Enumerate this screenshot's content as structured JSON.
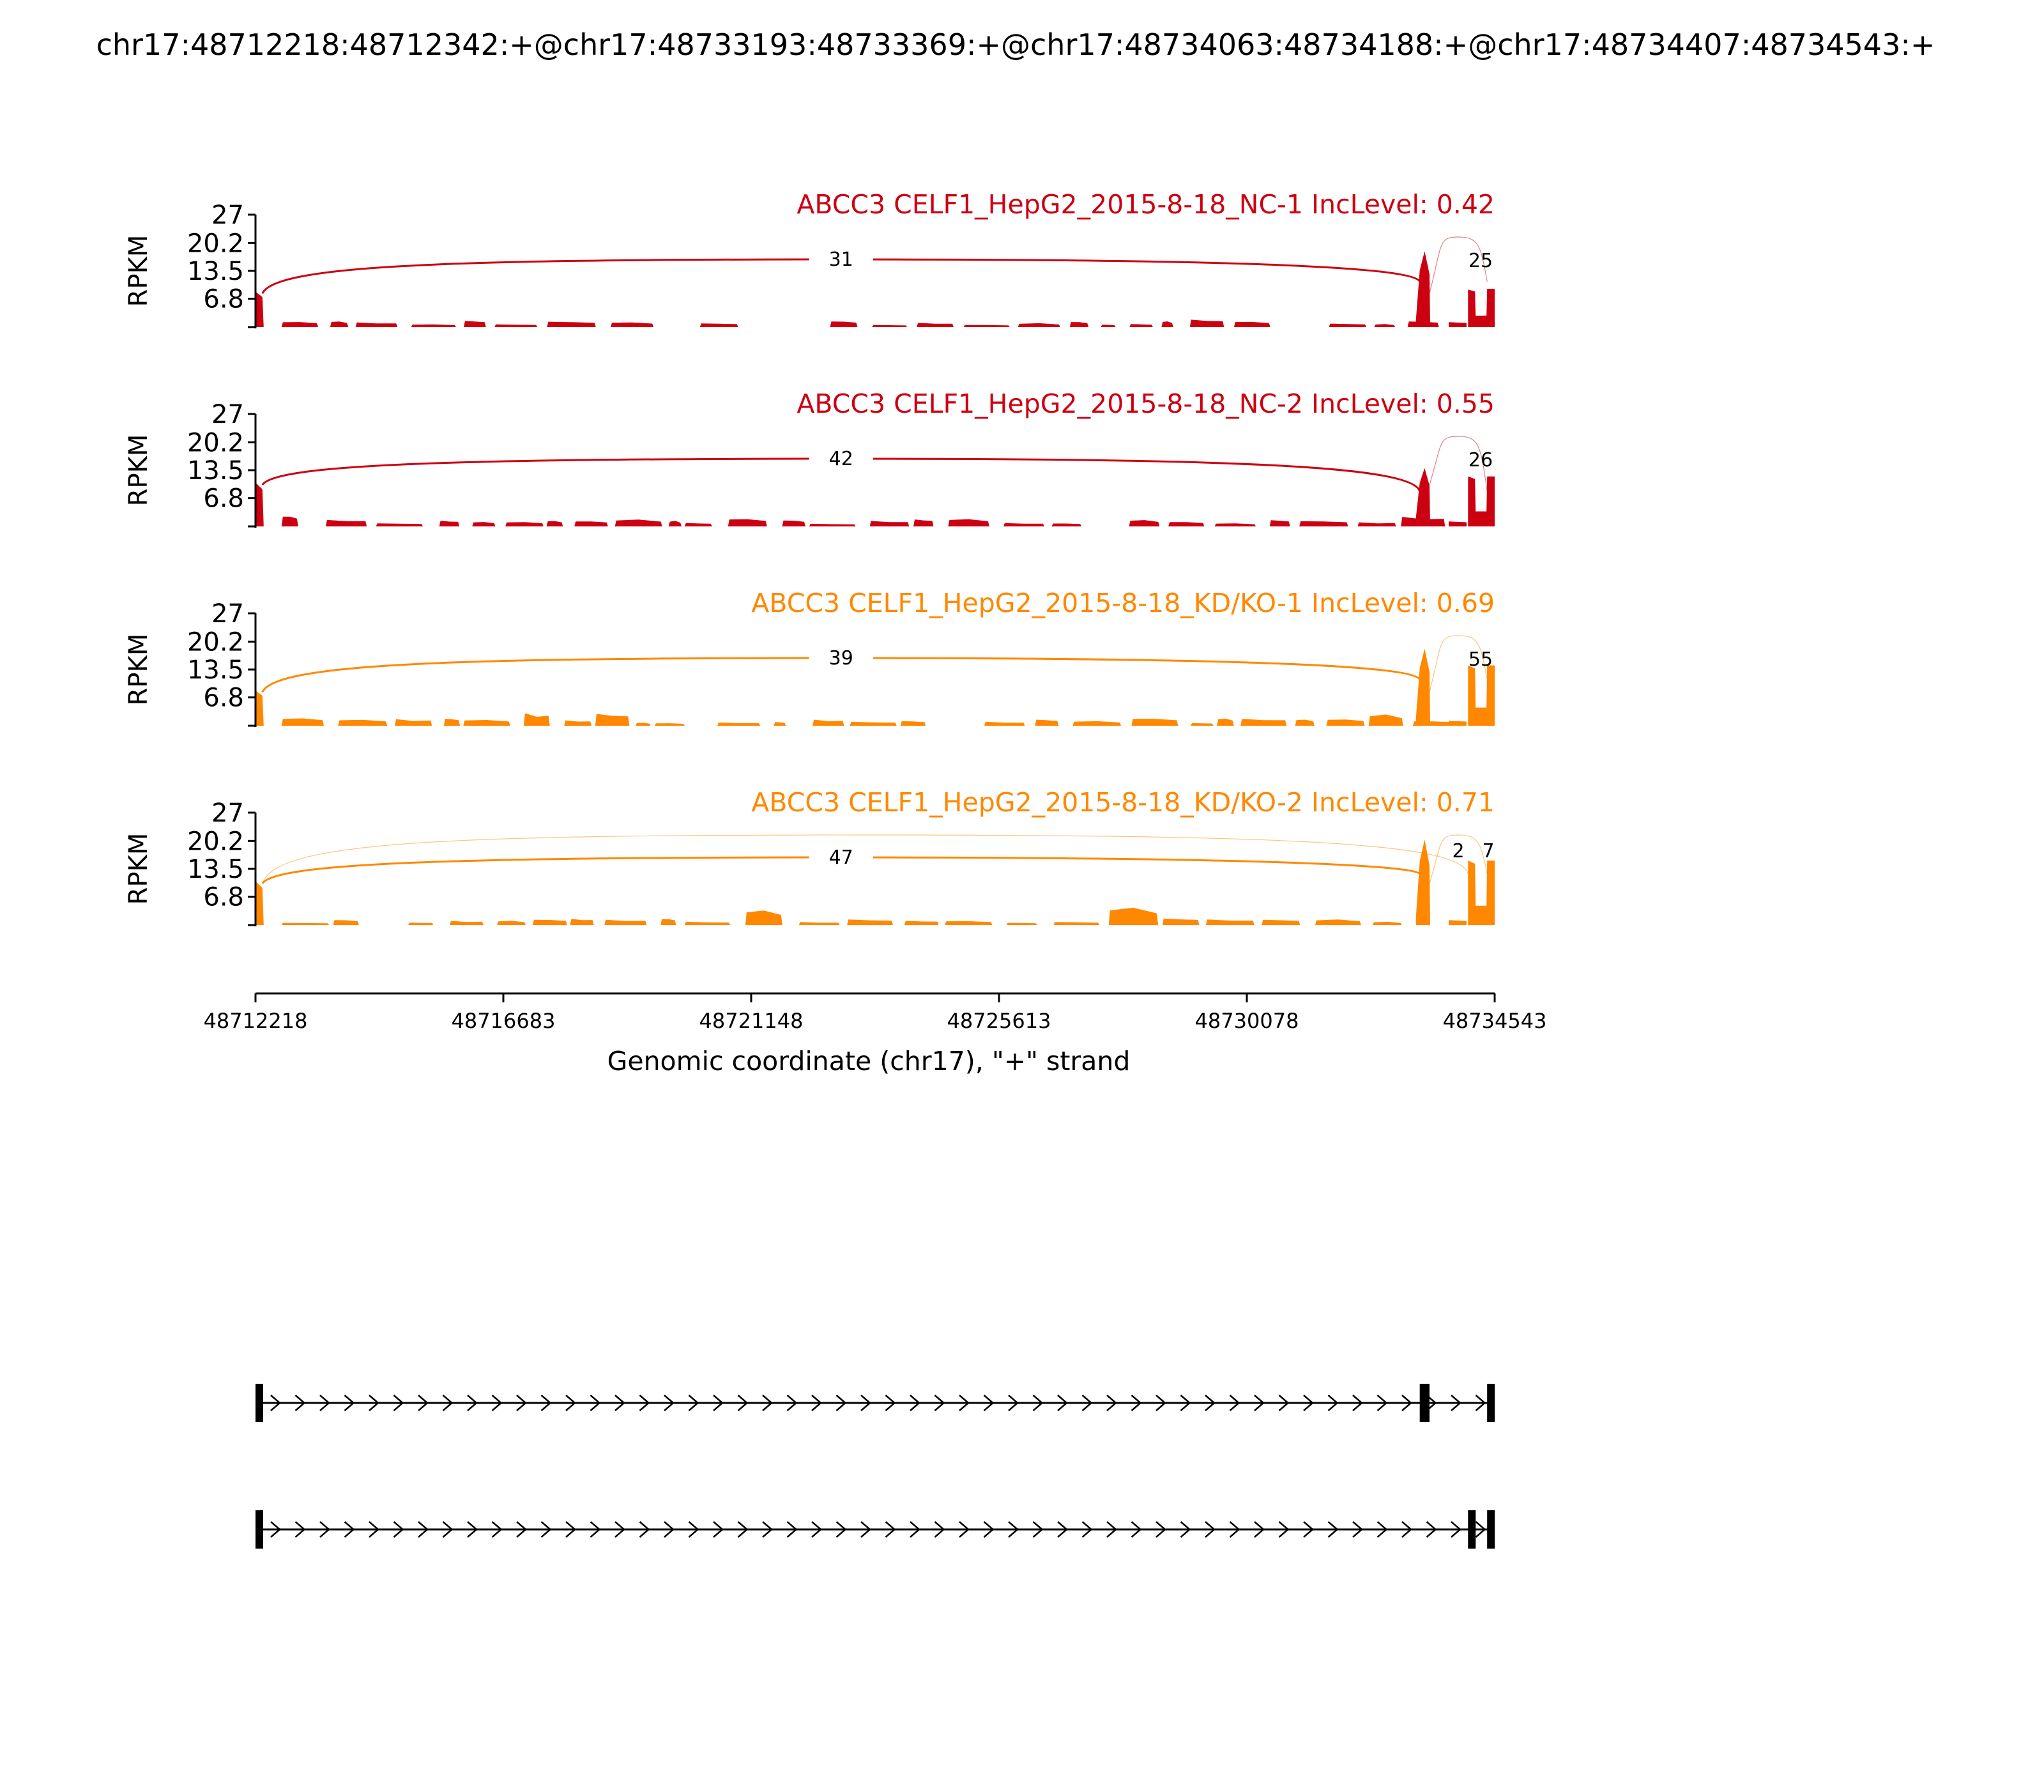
{
  "title": "chr17:48712218:48712342:+@chr17:48733193:48733369:+@chr17:48734063:48734188:+@chr17:48734407:48734543:+",
  "colors": {
    "nc": "#cc0011",
    "kd": "#ff8800",
    "axis": "#000000",
    "background": "#ffffff"
  },
  "chart_data": {
    "type": "area",
    "xlabel": "Genomic coordinate (chr17), \"+\" strand",
    "xlim": [
      48712218,
      48734543
    ],
    "xticks": [
      48712218,
      48716683,
      48721148,
      48725613,
      48730078,
      48734543
    ],
    "xtick_labels": [
      "48712218",
      "48716683",
      "48721148",
      "48725613",
      "48730078",
      "48734543"
    ],
    "ylabel": "RPKM",
    "ylim": [
      0,
      27
    ],
    "yticks": [
      6.8,
      13.5,
      20.2,
      27
    ],
    "ytick_labels": [
      "6.8",
      "13.5",
      "20.2",
      "27"
    ],
    "exons": [
      {
        "start": 48712218,
        "end": 48712342
      },
      {
        "start": 48733193,
        "end": 48733369
      },
      {
        "start": 48734063,
        "end": 48734188
      },
      {
        "start": 48734407,
        "end": 48734543
      }
    ],
    "panels": [
      {
        "label": "ABCC3 CELF1_HepG2_2015-8-18_NC-1 IncLevel: 0.42",
        "group": "nc",
        "peaks": {
          "exon1": 8.5,
          "exon2": 18.2,
          "exon3": 9.0,
          "exon4": 9.2,
          "intron": 1.2
        },
        "junctions": [
          {
            "from": 48712342,
            "to": 48733193,
            "count": "31",
            "show": true
          },
          {
            "from": 48733369,
            "to": 48734407,
            "count": "25",
            "show": false
          }
        ]
      },
      {
        "label": "ABCC3 CELF1_HepG2_2015-8-18_NC-2 IncLevel: 0.55",
        "group": "nc",
        "peaks": {
          "exon1": 10.5,
          "exon2": 14.0,
          "exon3": 12.0,
          "exon4": 12.0,
          "intron": 1.5
        },
        "junctions": [
          {
            "from": 48712342,
            "to": 48733193,
            "count": "42",
            "show": true
          },
          {
            "from": 48733369,
            "to": 48734407,
            "count": "26",
            "show": false
          }
        ]
      },
      {
        "label": "ABCC3 CELF1_HepG2_2015-8-18_KD/KO-1 IncLevel: 0.69",
        "group": "kd",
        "peaks": {
          "exon1": 8.5,
          "exon2": 18.5,
          "exon3": 14.5,
          "exon4": 14.5,
          "intron": 1.3
        },
        "junctions": [
          {
            "from": 48712342,
            "to": 48733193,
            "count": "39",
            "show": true
          },
          {
            "from": 48733369,
            "to": 48734407,
            "count": "55",
            "show": false
          }
        ]
      },
      {
        "label": "ABCC3 CELF1_HepG2_2015-8-18_KD/KO-2 IncLevel: 0.71",
        "group": "kd",
        "peaks": {
          "exon1": 10.5,
          "exon2": 20.5,
          "exon3": 15.5,
          "exon4": 15.5,
          "intron": 1.3
        },
        "junctions": [
          {
            "from": 48712342,
            "to": 48733193,
            "count": "47",
            "show": true
          },
          {
            "from": 48712342,
            "to": 48734063,
            "count": "2",
            "show": false
          },
          {
            "from": 48733369,
            "to": 48734407,
            "count": "7",
            "show": false
          }
        ]
      }
    ],
    "isoforms": [
      {
        "exons": [
          [
            48712218,
            48712342
          ],
          [
            48733193,
            48733369
          ],
          [
            48734407,
            48734543
          ]
        ]
      },
      {
        "exons": [
          [
            48712218,
            48712342
          ],
          [
            48734063,
            48734188
          ],
          [
            48734407,
            48734543
          ]
        ]
      }
    ]
  }
}
